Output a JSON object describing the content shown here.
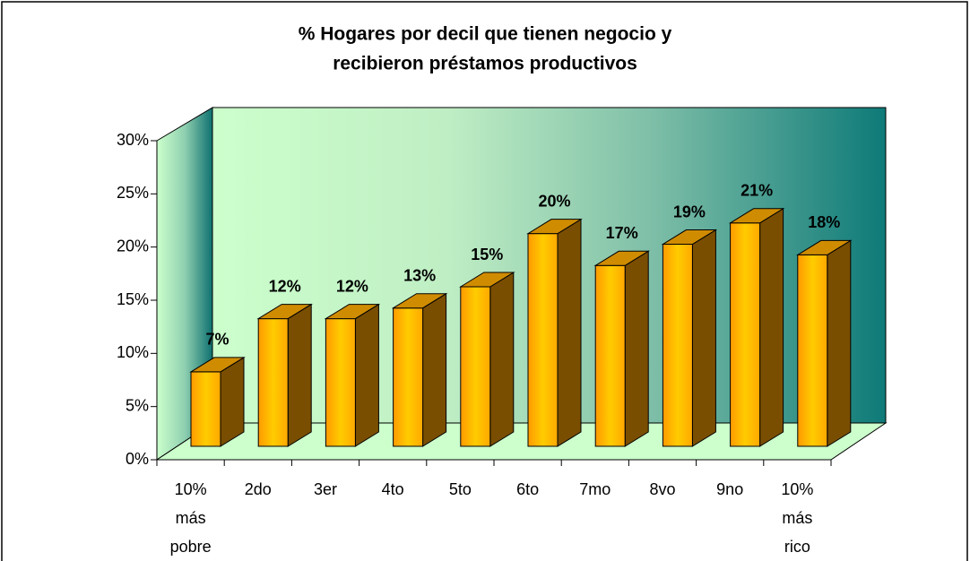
{
  "chart_data": {
    "type": "bar",
    "title": [
      "% Hogares por decil que tienen negocio y",
      "recibieron préstamos productivos"
    ],
    "categories": [
      "10% más pobre",
      "2do",
      "3er",
      "4to",
      "5to",
      "6to",
      "7mo",
      "8vo",
      "9no",
      "10% más rico"
    ],
    "values": [
      7,
      12,
      12,
      13,
      15,
      20,
      17,
      19,
      21,
      18
    ],
    "value_labels": [
      "7%",
      "12%",
      "12%",
      "13%",
      "15%",
      "20%",
      "17%",
      "19%",
      "21%",
      "18%"
    ],
    "color": "#ffb000",
    "ylim": [
      0,
      30
    ],
    "yticks": [
      {
        "value": 0,
        "label": "0%"
      },
      {
        "value": 5,
        "label": "5%"
      },
      {
        "value": 10,
        "label": "10%"
      },
      {
        "value": 15,
        "label": "15%"
      },
      {
        "value": 20,
        "label": "20%"
      },
      {
        "value": 25,
        "label": "25%"
      },
      {
        "value": 30,
        "label": "30%"
      }
    ]
  }
}
